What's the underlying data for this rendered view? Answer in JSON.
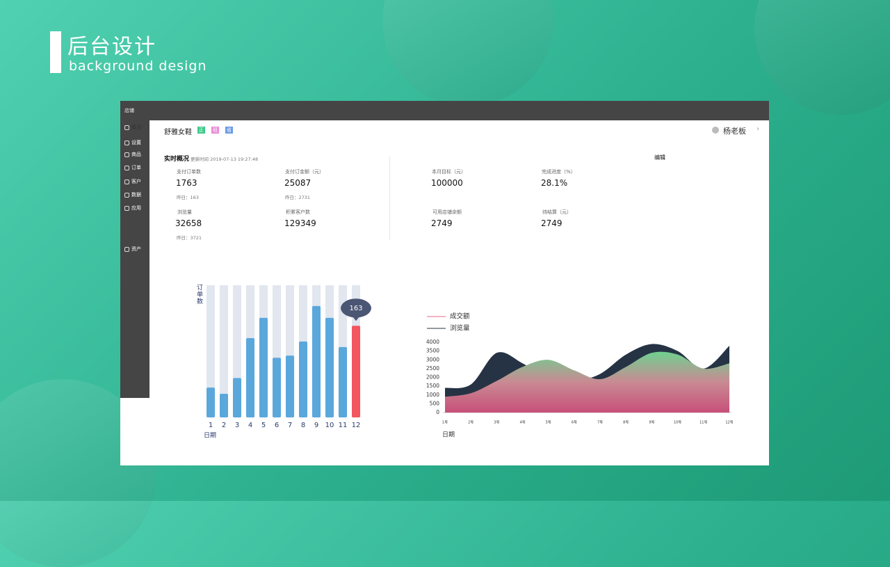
{
  "header": {
    "title": "后台设计",
    "subtitle": "background design"
  },
  "window": {
    "topbar": "店铺",
    "sidebar": [
      "概况",
      "设置",
      "商品",
      "订单",
      "客户",
      "数据",
      "资产",
      "应用"
    ],
    "shop_name": "舒雅女鞋",
    "tags": [
      "正",
      "班",
      "省"
    ],
    "user": "杨老板",
    "overview": {
      "title": "实时概况",
      "updated": "更新时间 2019-07-13 19:27:48",
      "edit": "编辑",
      "stats": [
        {
          "label": "支付订单数",
          "value": "1763",
          "yesterday": "昨日：163"
        },
        {
          "label": "支付订金额（元）",
          "value": "25087",
          "yesterday": "昨日：2731"
        },
        {
          "label": "本月目标（元）",
          "value": "100000"
        },
        {
          "label": "完成进度（%）",
          "value": "28.1%"
        },
        {
          "label": "浏览量",
          "value": "32658",
          "yesterday": "昨日：3721"
        },
        {
          "label": "积累客户数",
          "value": "129349"
        },
        {
          "label": "可用店铺余额",
          "value": "2749"
        },
        {
          "label": "待结算（元）",
          "value": "2749"
        }
      ]
    }
  },
  "chart_data": [
    {
      "type": "bar",
      "y_label": "订单数",
      "x_label": "日期",
      "categories": [
        "1",
        "2",
        "3",
        "4",
        "5",
        "6",
        "7",
        "8",
        "9",
        "10",
        "11",
        "12"
      ],
      "values": [
        53,
        42,
        70,
        141,
        177,
        106,
        110,
        135,
        198,
        177,
        125,
        163
      ],
      "color": "#5aa7dc",
      "colors": [
        "#5aa7dc",
        "#5aa7dc",
        "#5aa7dc",
        "#5aa7dc",
        "#5aa7dc",
        "#5aa7dc",
        "#5aa7dc",
        "#5aa7dc",
        "#5aa7dc",
        "#5aa7dc",
        "#5aa7dc",
        "#f2565f"
      ],
      "ylim": [
        0,
        235
      ]
    },
    {
      "type": "area",
      "x_label": "日期",
      "categories": [
        "1号",
        "2号",
        "3号",
        "4号",
        "5号",
        "6号",
        "7号",
        "8号",
        "9号",
        "10号",
        "11号",
        "12号"
      ],
      "series": [
        {
          "name": "成交额",
          "color": "#e8678a",
          "values": [
            900,
            1100,
            1800,
            2600,
            3000,
            2400,
            1900,
            2600,
            3400,
            3300,
            2500,
            2800
          ]
        },
        {
          "name": "浏览量",
          "color": "#263345",
          "values": [
            1400,
            1600,
            3400,
            2800,
            1900,
            1800,
            2200,
            3300,
            3900,
            3500,
            2500,
            3800
          ]
        }
      ],
      "ylim": [
        0,
        4000
      ],
      "yticks": [
        0,
        500,
        1000,
        1500,
        2000,
        2500,
        3000,
        3500,
        4000
      ]
    }
  ]
}
